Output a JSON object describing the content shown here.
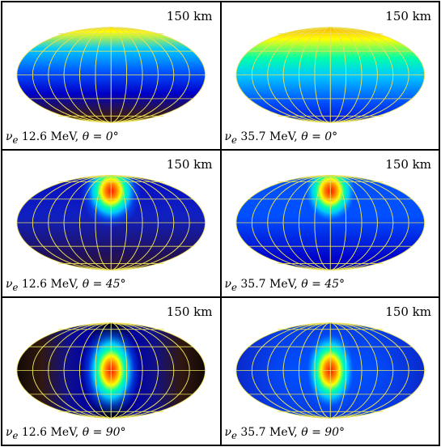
{
  "figure": {
    "panels": [
      {
        "distance": "150 km",
        "particle": "ν",
        "flavor": "e",
        "energy": "12.6 MeV,",
        "angle_label": "θ = 0°",
        "energy_mev": 12.6,
        "theta_deg": 0,
        "spot_lat_deg": 90
      },
      {
        "distance": "150 km",
        "particle": "ν",
        "flavor": "e",
        "energy": "35.7 MeV,",
        "angle_label": "θ = 0°",
        "energy_mev": 35.7,
        "theta_deg": 0,
        "spot_lat_deg": 90
      },
      {
        "distance": "150 km",
        "particle": "ν",
        "flavor": "e",
        "energy": "12.6 MeV,",
        "angle_label": "θ = 45°",
        "energy_mev": 12.6,
        "theta_deg": 45,
        "spot_lat_deg": 45
      },
      {
        "distance": "150 km",
        "particle": "ν",
        "flavor": "e",
        "energy": "35.7 MeV,",
        "angle_label": "θ = 45°",
        "energy_mev": 35.7,
        "theta_deg": 45,
        "spot_lat_deg": 45
      },
      {
        "distance": "150 km",
        "particle": "ν",
        "flavor": "e",
        "energy": "12.6 MeV,",
        "angle_label": "θ = 90°",
        "energy_mev": 12.6,
        "theta_deg": 90,
        "spot_lat_deg": 0
      },
      {
        "distance": "150 km",
        "particle": "ν",
        "flavor": "e",
        "energy": "35.7 MeV,",
        "angle_label": "θ = 90°",
        "energy_mev": 35.7,
        "theta_deg": 90,
        "spot_lat_deg": 0
      }
    ],
    "colors": {
      "grid_line": "#e8e05a",
      "colormap": [
        "#000000",
        "#3a1a10",
        "#0000c8",
        "#0050ff",
        "#00c8ff",
        "#00ffaa",
        "#ffff00",
        "#ff8000",
        "#ff1000"
      ]
    }
  }
}
